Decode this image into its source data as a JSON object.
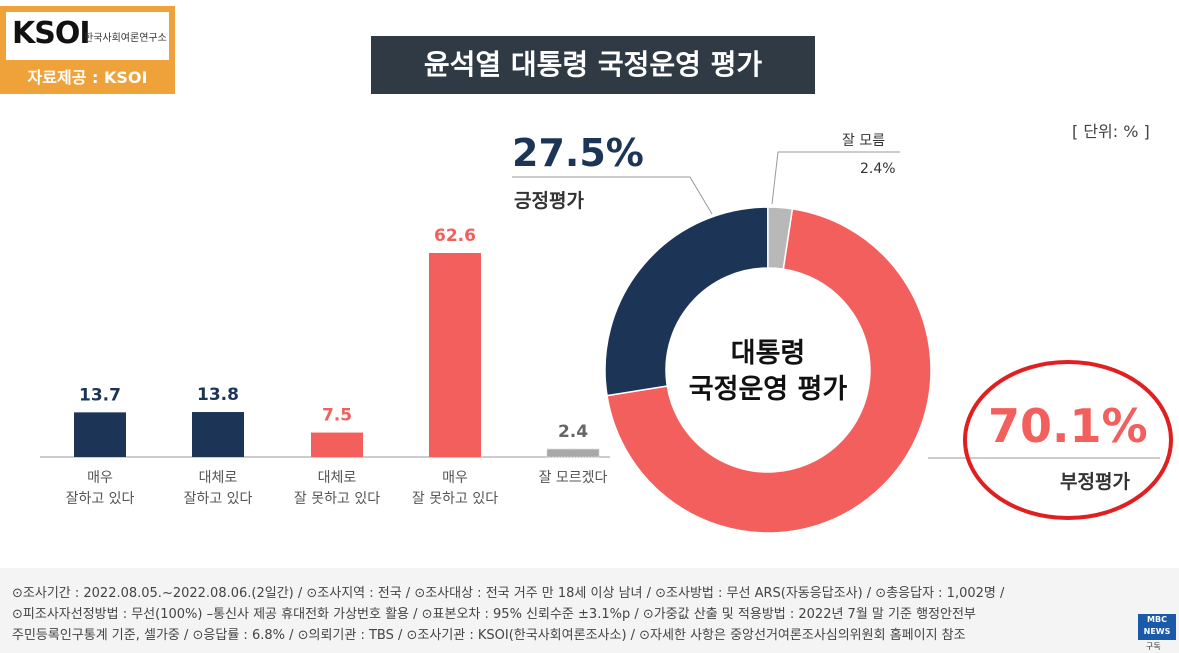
{
  "logo": {
    "name": "KSOI",
    "subtitle": "한국사회여론연구소",
    "source": "자료제공 : KSOI"
  },
  "title": "윤석열 대통령 국정운영 평가",
  "unit": "[ 단위: % ]",
  "colors": {
    "positive": "#1c3557",
    "negative": "#f25f5c",
    "unknown": "#b8b8b8",
    "header": "#2f3a44",
    "logo_bg": "#f0a23a",
    "highlight": "#e02020"
  },
  "chart_data": [
    {
      "type": "bar",
      "categories": [
        [
          "매우",
          "잘하고 있다"
        ],
        [
          "대체로",
          "잘하고 있다"
        ],
        [
          "대체로",
          "잘 못하고 있다"
        ],
        [
          "매우",
          "잘 못하고 있다"
        ],
        [
          "잘 모르겠다"
        ]
      ],
      "values": [
        13.7,
        13.8,
        7.5,
        62.6,
        2.4
      ],
      "value_labels": [
        "13.7",
        "13.8",
        "7.5",
        "62.6",
        "2.4"
      ],
      "bar_colors": [
        "#1c3557",
        "#1c3557",
        "#f25f5c",
        "#f25f5c",
        "#b8b8b8"
      ],
      "ylim": [
        0,
        62.6
      ]
    },
    {
      "type": "pie",
      "donut": true,
      "center_label": [
        "대통령",
        "국정운영 평가"
      ],
      "slices": [
        {
          "name": "부정평가",
          "value": 70.1,
          "label": "70.1%",
          "color": "#f25f5c"
        },
        {
          "name": "긍정평가",
          "value": 27.5,
          "label": "27.5%",
          "color": "#1c3557"
        },
        {
          "name": "잘 모름",
          "value": 2.4,
          "label": "2.4%",
          "color": "#b8b8b8"
        }
      ]
    }
  ],
  "footer": {
    "lines": [
      "⊙조사기간 : 2022.08.05.~2022.08.06.(2일간) / ⊙조사지역 : 전국 / ⊙조사대상 : 전국 거주 만 18세 이상 남녀 / ⊙조사방법 : 무선 ARS(자동응답조사) / ⊙총응답자 : 1,002명 /",
      "⊙피조사자선정방법 : 무선(100%) –통신사 제공 휴대전화 가상번호 활용 / ⊙표본오차 : 95% 신뢰수준 ±3.1%p / ⊙가중값 산출 및 적용방법 : 2022년 7월 말 기준 행정안전부",
      "주민등록인구통계 기준, 셀가중 / ⊙응답률 : 6.8% / ⊙의뢰기관 : TBS / ⊙조사기관 : KSOI(한국사회여론조사소) / ⊙자세한 사항은 중앙선거여론조사심의위원회 홈페이지 참조"
    ]
  },
  "badge": {
    "name": "MBC NEWS",
    "sub": "구독"
  }
}
